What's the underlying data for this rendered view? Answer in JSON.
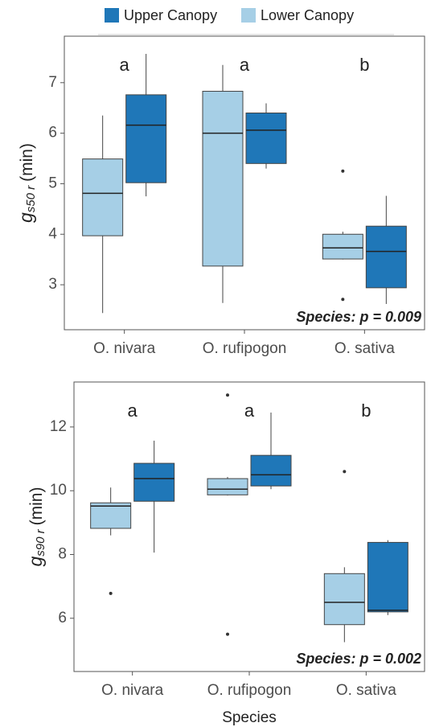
{
  "chart_data": [
    {
      "type": "box",
      "categories": [
        "O. nivara",
        "O. rufipogon",
        "O. sativa"
      ],
      "ylabel": {
        "symbol": "g",
        "subscript": "s50 r",
        "unit": "(min)"
      },
      "ylim": [
        2.11,
        7.92
      ],
      "yticks": [
        3,
        4,
        5,
        6,
        7
      ],
      "group_letters": [
        "a",
        "a",
        "b"
      ],
      "annotation": "Species: p = 0.009",
      "series": [
        {
          "name": "Upper Canopy",
          "color": "#1f77b8",
          "whislo": [
            4.75,
            5.3,
            2.62
          ],
          "q1": [
            5.02,
            5.4,
            2.94
          ],
          "med": [
            6.16,
            6.06,
            3.66
          ],
          "q3": [
            6.76,
            6.4,
            4.16
          ],
          "whishi": [
            7.57,
            6.59,
            4.76
          ],
          "fliers": [
            [],
            [],
            []
          ]
        },
        {
          "name": "Lower Canopy",
          "color": "#a6cfe6",
          "whislo": [
            2.44,
            2.64,
            3.5
          ],
          "q1": [
            3.97,
            3.37,
            3.51
          ],
          "med": [
            4.81,
            6.0,
            3.73
          ],
          "q3": [
            5.49,
            6.83,
            4.0
          ],
          "whishi": [
            6.35,
            7.35,
            4.05
          ],
          "fliers": [
            [],
            [],
            [
              5.25,
              2.71
            ]
          ]
        }
      ]
    },
    {
      "type": "box",
      "categories": [
        "O. nivara",
        "O. rufipogon",
        "O. sativa"
      ],
      "xlabel": "Species",
      "ylabel": {
        "symbol": "g",
        "subscript": "s90 r",
        "unit": "(min)"
      },
      "ylim": [
        4.33,
        13.41
      ],
      "yticks": [
        6,
        8,
        10,
        12
      ],
      "group_letters": [
        "a",
        "a",
        "b"
      ],
      "annotation": "Species: p = 0.002",
      "series": [
        {
          "color": "#1f77b8",
          "whislo": [
            8.06,
            10.05,
            6.1
          ],
          "q1": [
            9.67,
            10.15,
            6.2
          ],
          "med": [
            10.38,
            10.5,
            6.25
          ],
          "q3": [
            10.86,
            11.11,
            8.38
          ],
          "whishi": [
            11.57,
            12.45,
            8.45
          ],
          "fliers": [
            [],
            [],
            []
          ]
        },
        {
          "color": "#a6cfe6",
          "whislo": [
            8.6,
            9.85,
            5.25
          ],
          "q1": [
            8.82,
            9.87,
            5.8
          ],
          "med": [
            9.52,
            10.05,
            6.5
          ],
          "q3": [
            9.62,
            10.38,
            7.4
          ],
          "whishi": [
            10.1,
            10.43,
            7.6
          ],
          "fliers": [
            [
              6.78
            ],
            [
              13.0,
              5.5
            ],
            [
              10.6
            ]
          ]
        }
      ]
    }
  ]
}
